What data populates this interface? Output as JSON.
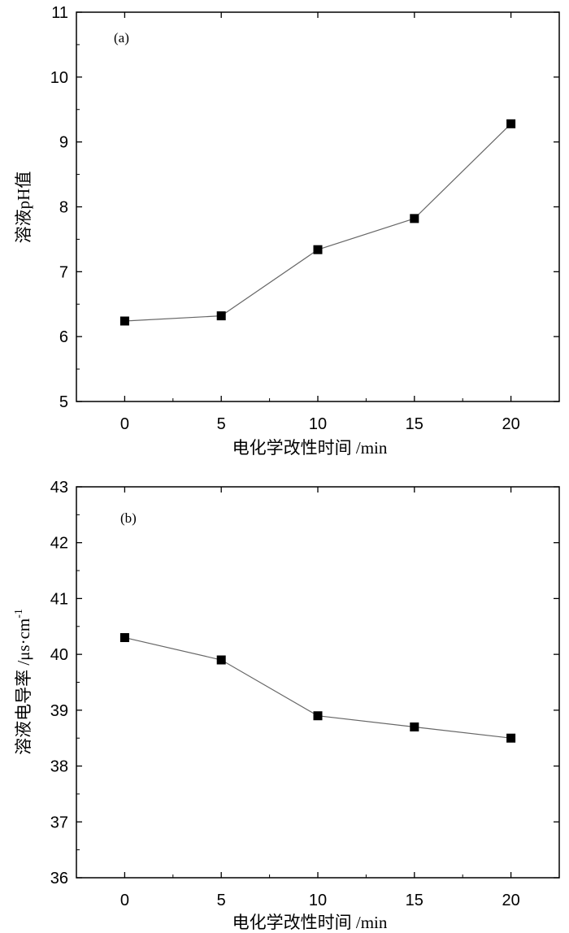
{
  "chart_data": [
    {
      "type": "line",
      "panel_label": "(a)",
      "x": [
        0,
        5,
        10,
        15,
        20
      ],
      "series": [
        {
          "values": [
            6.24,
            6.32,
            7.34,
            7.82,
            9.28
          ]
        }
      ],
      "xlabel": "电化学改性时间 /min",
      "ylabel": "溶液pH值",
      "xlim": [
        -2.5,
        22.5
      ],
      "ylim": [
        5,
        11
      ],
      "xticks": [
        0,
        5,
        10,
        15,
        20
      ],
      "yticks": [
        5,
        6,
        7,
        8,
        9,
        10,
        11
      ],
      "grid": false,
      "marker": "square",
      "line_color": "#666666",
      "marker_color": "#000000"
    },
    {
      "type": "line",
      "panel_label": "(b)",
      "x": [
        0,
        5,
        10,
        15,
        20
      ],
      "series": [
        {
          "values": [
            40.3,
            39.9,
            38.9,
            38.7,
            38.5
          ]
        }
      ],
      "xlabel": "电化学改性时间 /min",
      "ylabel": "溶液电导率 /μs·cm",
      "ylabel_superscript": "-1",
      "xlim": [
        -2.5,
        22.5
      ],
      "ylim": [
        36,
        43
      ],
      "xticks": [
        0,
        5,
        10,
        15,
        20
      ],
      "yticks": [
        36,
        37,
        38,
        39,
        40,
        41,
        42,
        43
      ],
      "grid": false,
      "marker": "square",
      "line_color": "#666666",
      "marker_color": "#000000"
    }
  ]
}
